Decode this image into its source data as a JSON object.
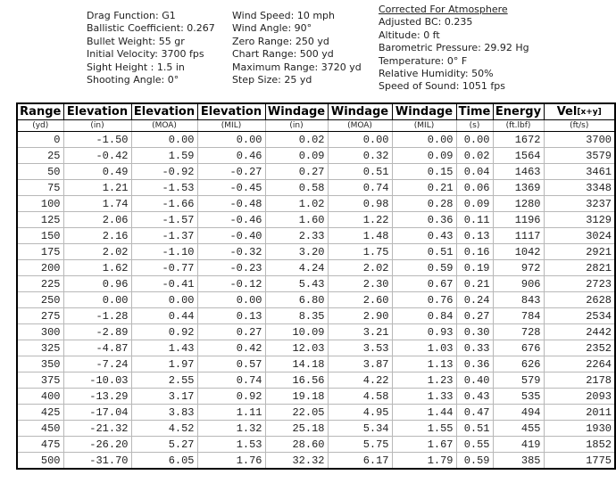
{
  "info": {
    "column1": [
      "Drag Function: G1",
      "Ballistic Coefficient: 0.267",
      "Bullet Weight: 55 gr",
      "Initial Velocity: 3700 fps",
      "Sight Height : 1.5 in",
      "Shooting Angle: 0°"
    ],
    "column2": [
      "Wind Speed: 10 mph",
      "Wind Angle: 90°",
      "Zero Range: 250 yd",
      "Chart Range: 500 yd",
      "Maximum Range: 3720 yd",
      "Step Size: 25 yd"
    ],
    "atmosphere_title": "Corrected For Atmosphere",
    "column3": [
      "Adjusted BC: 0.235",
      "Altitude: 0 ft",
      "Barometric Pressure: 29.92 Hg",
      "Temperature: 0° F",
      "Relative Humidity: 50%",
      "Speed of Sound: 1051 fps"
    ]
  },
  "table": {
    "headers": [
      "Range",
      "Elevation",
      "Elevation",
      "Elevation",
      "Windage",
      "Windage",
      "Windage",
      "Time",
      "Energy",
      "Vel"
    ],
    "vel_suffix": "[x+y]",
    "units": [
      "(yd)",
      "(in)",
      "(MOA)",
      "(MIL)",
      "(in)",
      "(MOA)",
      "(MIL)",
      "(s)",
      "(ft.lbf)",
      "(ft/s)"
    ],
    "rows": [
      [
        "0",
        "-1.50",
        "0.00",
        "0.00",
        "0.02",
        "0.00",
        "0.00",
        "0.00",
        "1672",
        "3700"
      ],
      [
        "25",
        "-0.42",
        "1.59",
        "0.46",
        "0.09",
        "0.32",
        "0.09",
        "0.02",
        "1564",
        "3579"
      ],
      [
        "50",
        "0.49",
        "-0.92",
        "-0.27",
        "0.27",
        "0.51",
        "0.15",
        "0.04",
        "1463",
        "3461"
      ],
      [
        "75",
        "1.21",
        "-1.53",
        "-0.45",
        "0.58",
        "0.74",
        "0.21",
        "0.06",
        "1369",
        "3348"
      ],
      [
        "100",
        "1.74",
        "-1.66",
        "-0.48",
        "1.02",
        "0.98",
        "0.28",
        "0.09",
        "1280",
        "3237"
      ],
      [
        "125",
        "2.06",
        "-1.57",
        "-0.46",
        "1.60",
        "1.22",
        "0.36",
        "0.11",
        "1196",
        "3129"
      ],
      [
        "150",
        "2.16",
        "-1.37",
        "-0.40",
        "2.33",
        "1.48",
        "0.43",
        "0.13",
        "1117",
        "3024"
      ],
      [
        "175",
        "2.02",
        "-1.10",
        "-0.32",
        "3.20",
        "1.75",
        "0.51",
        "0.16",
        "1042",
        "2921"
      ],
      [
        "200",
        "1.62",
        "-0.77",
        "-0.23",
        "4.24",
        "2.02",
        "0.59",
        "0.19",
        "972",
        "2821"
      ],
      [
        "225",
        "0.96",
        "-0.41",
        "-0.12",
        "5.43",
        "2.30",
        "0.67",
        "0.21",
        "906",
        "2723"
      ],
      [
        "250",
        "0.00",
        "0.00",
        "0.00",
        "6.80",
        "2.60",
        "0.76",
        "0.24",
        "843",
        "2628"
      ],
      [
        "275",
        "-1.28",
        "0.44",
        "0.13",
        "8.35",
        "2.90",
        "0.84",
        "0.27",
        "784",
        "2534"
      ],
      [
        "300",
        "-2.89",
        "0.92",
        "0.27",
        "10.09",
        "3.21",
        "0.93",
        "0.30",
        "728",
        "2442"
      ],
      [
        "325",
        "-4.87",
        "1.43",
        "0.42",
        "12.03",
        "3.53",
        "1.03",
        "0.33",
        "676",
        "2352"
      ],
      [
        "350",
        "-7.24",
        "1.97",
        "0.57",
        "14.18",
        "3.87",
        "1.13",
        "0.36",
        "626",
        "2264"
      ],
      [
        "375",
        "-10.03",
        "2.55",
        "0.74",
        "16.56",
        "4.22",
        "1.23",
        "0.40",
        "579",
        "2178"
      ],
      [
        "400",
        "-13.29",
        "3.17",
        "0.92",
        "19.18",
        "4.58",
        "1.33",
        "0.43",
        "535",
        "2093"
      ],
      [
        "425",
        "-17.04",
        "3.83",
        "1.11",
        "22.05",
        "4.95",
        "1.44",
        "0.47",
        "494",
        "2011"
      ],
      [
        "450",
        "-21.32",
        "4.52",
        "1.32",
        "25.18",
        "5.34",
        "1.55",
        "0.51",
        "455",
        "1930"
      ],
      [
        "475",
        "-26.20",
        "5.27",
        "1.53",
        "28.60",
        "5.75",
        "1.67",
        "0.55",
        "419",
        "1852"
      ],
      [
        "500",
        "-31.70",
        "6.05",
        "1.76",
        "32.32",
        "6.17",
        "1.79",
        "0.59",
        "385",
        "1775"
      ]
    ]
  }
}
